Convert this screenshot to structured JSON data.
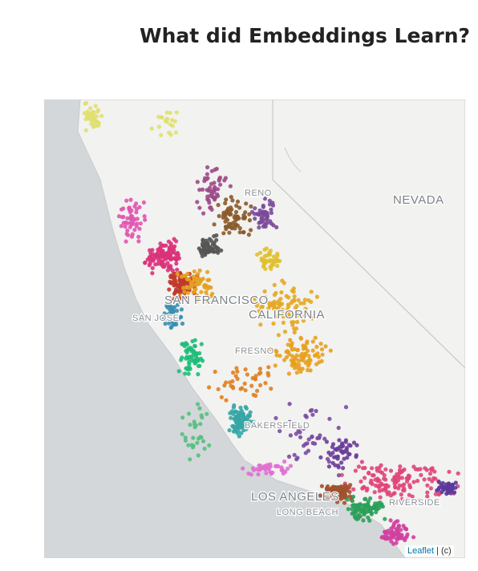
{
  "header": {
    "title": "What did Embeddings Learn?"
  },
  "map": {
    "labels": {
      "reno": "RENO",
      "nevada": "NEVADA",
      "san_francisco": "SAN FRANCISCO",
      "san_jose": "SAN JOSE",
      "california": "CALIFORNIA",
      "fresno": "FRESNO",
      "bakersfield": "BAKERSFIELD",
      "los_angeles": "LOS ANGELES",
      "long_beach": "LONG BEACH",
      "riverside": "RIVERSIDE"
    },
    "attribution": {
      "link": "Leaflet",
      "rest": "| (c)"
    }
  }
}
